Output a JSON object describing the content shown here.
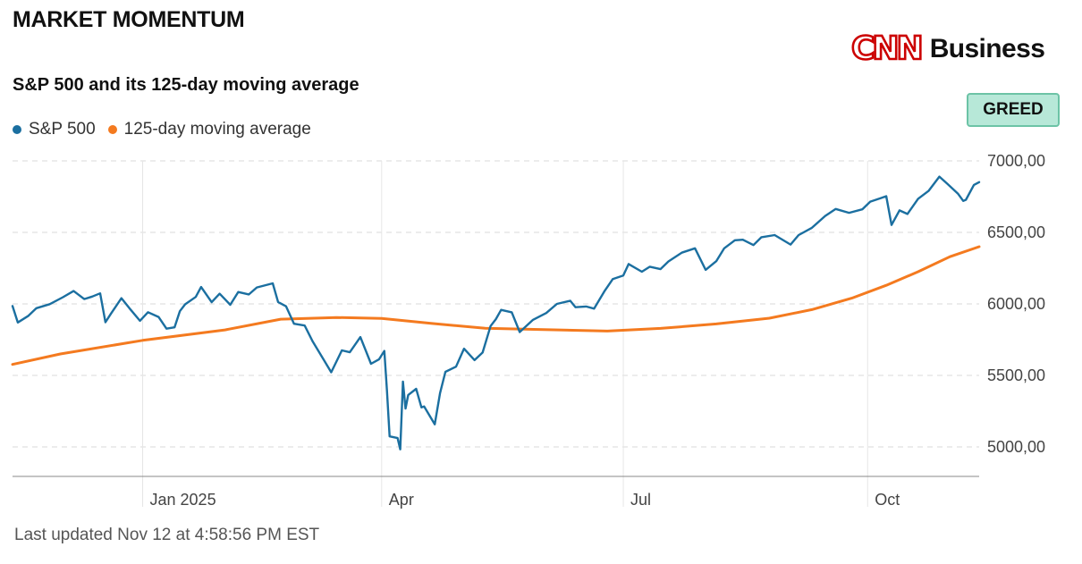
{
  "header": {
    "title": "MARKET MOMENTUM",
    "logo_mark": "CNN",
    "logo_word": "Business"
  },
  "chart_data": {
    "type": "line",
    "title": "S&P 500 and its 125-day moving average",
    "sentiment_badge": "GREED",
    "xlabel": "",
    "ylabel": "",
    "x_range": [
      "2024-11-13",
      "2025-11-12"
    ],
    "ylim": [
      4800,
      7000
    ],
    "y_ticks": [
      5000,
      5500,
      6000,
      6500,
      7000
    ],
    "y_tick_labels": [
      "5000,00",
      "5500,00",
      "6000,00",
      "6500,00",
      "7000,00"
    ],
    "x_ticks": [
      {
        "label": "Jan 2025",
        "date": "2025-01-01"
      },
      {
        "label": "Apr",
        "date": "2025-04-01"
      },
      {
        "label": "Jul",
        "date": "2025-07-01"
      },
      {
        "label": "Oct",
        "date": "2025-10-01"
      }
    ],
    "grid": true,
    "legend_position": "top-left",
    "series": [
      {
        "name": "S&P 500",
        "color": "#1b6fa0",
        "points": [
          [
            "2024-11-13",
            5985
          ],
          [
            "2024-11-15",
            5870
          ],
          [
            "2024-11-19",
            5917
          ],
          [
            "2024-11-22",
            5970
          ],
          [
            "2024-11-27",
            5998
          ],
          [
            "2024-12-02",
            6047
          ],
          [
            "2024-12-06",
            6090
          ],
          [
            "2024-12-10",
            6034
          ],
          [
            "2024-12-13",
            6051
          ],
          [
            "2024-12-16",
            6074
          ],
          [
            "2024-12-18",
            5872
          ],
          [
            "2024-12-20",
            5930
          ],
          [
            "2024-12-24",
            6040
          ],
          [
            "2024-12-27",
            5970
          ],
          [
            "2024-12-31",
            5882
          ],
          [
            "2025-01-03",
            5942
          ],
          [
            "2025-01-07",
            5909
          ],
          [
            "2025-01-10",
            5827
          ],
          [
            "2025-01-13",
            5836
          ],
          [
            "2025-01-15",
            5949
          ],
          [
            "2025-01-17",
            5997
          ],
          [
            "2025-01-21",
            6049
          ],
          [
            "2025-01-23",
            6118
          ],
          [
            "2025-01-27",
            6012
          ],
          [
            "2025-01-30",
            6071
          ],
          [
            "2025-02-03",
            5994
          ],
          [
            "2025-02-06",
            6083
          ],
          [
            "2025-02-10",
            6066
          ],
          [
            "2025-02-13",
            6115
          ],
          [
            "2025-02-19",
            6144
          ],
          [
            "2025-02-21",
            6013
          ],
          [
            "2025-02-24",
            5983
          ],
          [
            "2025-02-27",
            5861
          ],
          [
            "2025-03-03",
            5849
          ],
          [
            "2025-03-06",
            5738
          ],
          [
            "2025-03-10",
            5615
          ],
          [
            "2025-03-13",
            5522
          ],
          [
            "2025-03-17",
            5675
          ],
          [
            "2025-03-20",
            5662
          ],
          [
            "2025-03-24",
            5768
          ],
          [
            "2025-03-28",
            5581
          ],
          [
            "2025-03-31",
            5612
          ],
          [
            "2025-04-02",
            5671
          ],
          [
            "2025-04-03",
            5397
          ],
          [
            "2025-04-04",
            5074
          ],
          [
            "2025-04-07",
            5062
          ],
          [
            "2025-04-08",
            4983
          ],
          [
            "2025-04-09",
            5457
          ],
          [
            "2025-04-10",
            5268
          ],
          [
            "2025-04-11",
            5363
          ],
          [
            "2025-04-14",
            5406
          ],
          [
            "2025-04-16",
            5276
          ],
          [
            "2025-04-17",
            5283
          ],
          [
            "2025-04-21",
            5158
          ],
          [
            "2025-04-23",
            5376
          ],
          [
            "2025-04-25",
            5525
          ],
          [
            "2025-04-29",
            5561
          ],
          [
            "2025-05-02",
            5687
          ],
          [
            "2025-05-06",
            5607
          ],
          [
            "2025-05-09",
            5660
          ],
          [
            "2025-05-12",
            5845
          ],
          [
            "2025-05-14",
            5893
          ],
          [
            "2025-05-16",
            5958
          ],
          [
            "2025-05-20",
            5941
          ],
          [
            "2025-05-23",
            5803
          ],
          [
            "2025-05-28",
            5889
          ],
          [
            "2025-06-02",
            5936
          ],
          [
            "2025-06-06",
            6000
          ],
          [
            "2025-06-11",
            6022
          ],
          [
            "2025-06-13",
            5977
          ],
          [
            "2025-06-17",
            5982
          ],
          [
            "2025-06-20",
            5967
          ],
          [
            "2025-06-24",
            6092
          ],
          [
            "2025-06-27",
            6173
          ],
          [
            "2025-07-01",
            6198
          ],
          [
            "2025-07-03",
            6279
          ],
          [
            "2025-07-08",
            6225
          ],
          [
            "2025-07-11",
            6260
          ],
          [
            "2025-07-15",
            6243
          ],
          [
            "2025-07-18",
            6297
          ],
          [
            "2025-07-23",
            6358
          ],
          [
            "2025-07-28",
            6389
          ],
          [
            "2025-08-01",
            6238
          ],
          [
            "2025-08-05",
            6299
          ],
          [
            "2025-08-08",
            6389
          ],
          [
            "2025-08-12",
            6445
          ],
          [
            "2025-08-15",
            6449
          ],
          [
            "2025-08-19",
            6411
          ],
          [
            "2025-08-22",
            6466
          ],
          [
            "2025-08-27",
            6481
          ],
          [
            "2025-09-02",
            6415
          ],
          [
            "2025-09-05",
            6481
          ],
          [
            "2025-09-10",
            6532
          ],
          [
            "2025-09-15",
            6615
          ],
          [
            "2025-09-19",
            6664
          ],
          [
            "2025-09-24",
            6637
          ],
          [
            "2025-09-29",
            6661
          ],
          [
            "2025-10-02",
            6715
          ],
          [
            "2025-10-06",
            6740
          ],
          [
            "2025-10-08",
            6753
          ],
          [
            "2025-10-10",
            6552
          ],
          [
            "2025-10-13",
            6654
          ],
          [
            "2025-10-16",
            6629
          ],
          [
            "2025-10-20",
            6735
          ],
          [
            "2025-10-24",
            6791
          ],
          [
            "2025-10-28",
            6890
          ],
          [
            "2025-10-31",
            6840
          ],
          [
            "2025-11-04",
            6771
          ],
          [
            "2025-11-06",
            6720
          ],
          [
            "2025-11-07",
            6728
          ],
          [
            "2025-11-10",
            6832
          ],
          [
            "2025-11-12",
            6851
          ]
        ]
      },
      {
        "name": "125-day moving average",
        "color": "#f47a1f",
        "points": [
          [
            "2024-11-13",
            5577
          ],
          [
            "2024-12-01",
            5650
          ],
          [
            "2025-01-01",
            5745
          ],
          [
            "2025-02-01",
            5818
          ],
          [
            "2025-02-22",
            5893
          ],
          [
            "2025-03-15",
            5905
          ],
          [
            "2025-04-01",
            5899
          ],
          [
            "2025-04-20",
            5863
          ],
          [
            "2025-05-10",
            5830
          ],
          [
            "2025-06-01",
            5820
          ],
          [
            "2025-06-25",
            5810
          ],
          [
            "2025-07-15",
            5829
          ],
          [
            "2025-08-05",
            5860
          ],
          [
            "2025-08-25",
            5900
          ],
          [
            "2025-09-10",
            5960
          ],
          [
            "2025-09-25",
            6040
          ],
          [
            "2025-10-08",
            6130
          ],
          [
            "2025-10-20",
            6225
          ],
          [
            "2025-11-01",
            6330
          ],
          [
            "2025-11-12",
            6400
          ]
        ]
      }
    ]
  },
  "footer": {
    "last_updated": "Last updated Nov 12 at 4:58:56 PM EST"
  }
}
